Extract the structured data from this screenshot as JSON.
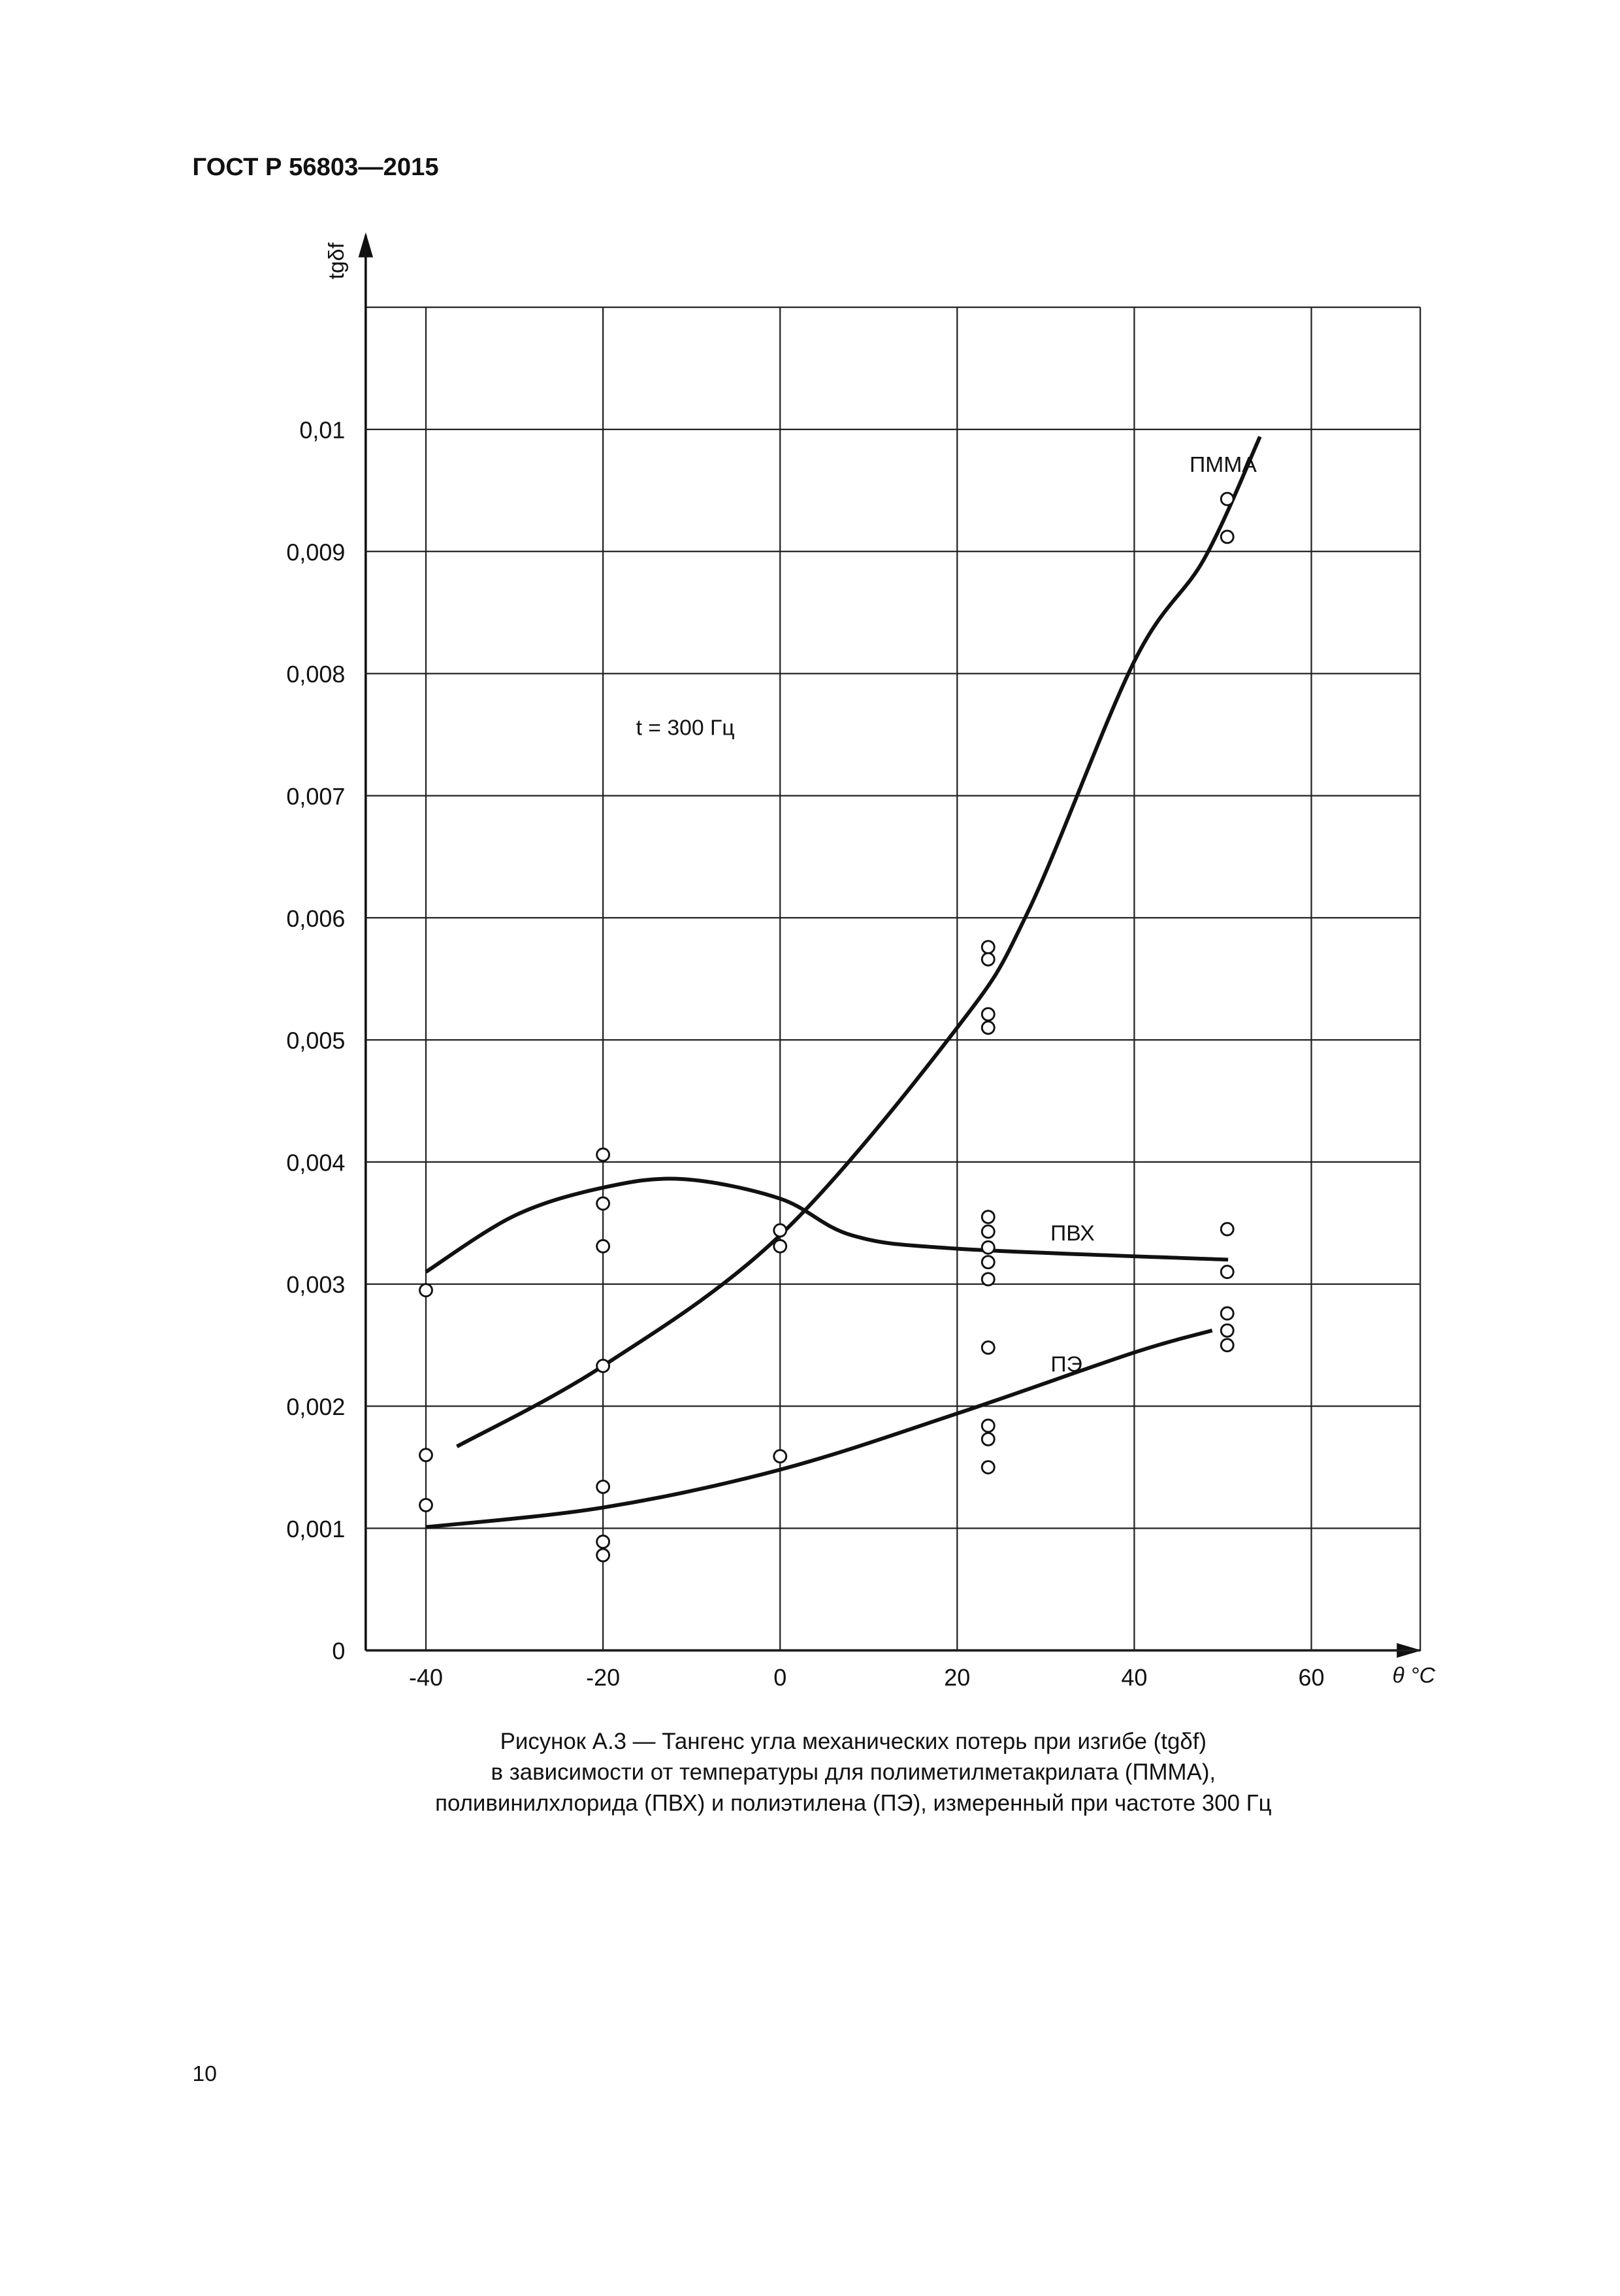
{
  "header": {
    "title": "ГОСТ Р 56803—2015"
  },
  "chart_data": {
    "type": "line",
    "y_label": "tgδf",
    "x_label": "θ °C",
    "annotation": "t = 300 Гц",
    "xlim": [
      -46.8,
      72.3
    ],
    "xticks": [
      -40,
      -20,
      0,
      20,
      40,
      60
    ],
    "ylim": [
      0,
      0.011
    ],
    "yticks": [
      0,
      {
        "value": 0.001,
        "label": "0,001"
      },
      {
        "value": 0.002,
        "label": "0,002"
      },
      {
        "value": 0.003,
        "label": "0,003"
      },
      {
        "value": 0.004,
        "label": "0,004"
      },
      {
        "value": 0.005,
        "label": "0,005"
      },
      {
        "value": 0.006,
        "label": "0,006"
      },
      {
        "value": 0.007,
        "label": "0,007"
      },
      {
        "value": 0.008,
        "label": "0,008"
      },
      {
        "value": 0.009,
        "label": "0,009"
      },
      {
        "value": 0.01,
        "label": "0,01"
      }
    ],
    "grid": true,
    "color": "#111111",
    "series": [
      {
        "name": "ПММА",
        "color": "#111111",
        "x": [
          -36.5,
          -20,
          0,
          20,
          28,
          40,
          47.9,
          54.2
        ],
        "values": [
          0.00167,
          0.00233,
          0.0034,
          0.0051,
          0.00605,
          0.0081,
          0.00894,
          0.00994
        ]
      },
      {
        "name": "ПВХ",
        "color": "#111111",
        "x": [
          -40,
          -30,
          -20,
          -11,
          0,
          8.1,
          20,
          50.6
        ],
        "values": [
          0.0031,
          0.00356,
          0.00379,
          0.00386,
          0.0037,
          0.0034,
          0.00329,
          0.0032
        ]
      },
      {
        "name": "ПЭ",
        "color": "#111111",
        "x": [
          -40,
          -20,
          0,
          20,
          40,
          48.8
        ],
        "values": [
          0.00101,
          0.00117,
          0.00148,
          0.00194,
          0.00244,
          0.00262
        ]
      }
    ],
    "points": {
      "x": [
        -40,
        -40,
        -40,
        -20,
        -20,
        -20,
        -20,
        -20,
        -20,
        -20,
        0,
        0,
        0,
        23.5,
        23.5,
        23.5,
        23.5,
        23.5,
        23.5,
        23.5,
        23.5,
        23.5,
        23.5,
        23.5,
        23.5,
        23.5,
        50.5,
        50.5,
        50.5,
        50.5,
        50.5,
        50.5,
        50.5
      ],
      "values": [
        0.00295,
        0.0016,
        0.00119,
        0.00406,
        0.00366,
        0.00331,
        0.00233,
        0.00134,
        0.00089,
        0.00078,
        0.00344,
        0.00331,
        0.00159,
        0.00576,
        0.00566,
        0.00521,
        0.0051,
        0.00355,
        0.00343,
        0.0033,
        0.00318,
        0.00304,
        0.00248,
        0.00184,
        0.00173,
        0.0015,
        0.00943,
        0.00912,
        0.00345,
        0.0031,
        0.00276,
        0.00262,
        0.0025
      ]
    },
    "caption": [
      "Рисунок А.3 — Тангенс угла механических потерь при изгибе (tgδf)",
      "в зависимости от температуры для полиметилметакрилата (ПММА),",
      "поливинилхлорида (ПВХ) и полиэтилена (ПЭ), измеренный при частоте 300 Гц"
    ]
  },
  "footer": {
    "page": "10"
  }
}
